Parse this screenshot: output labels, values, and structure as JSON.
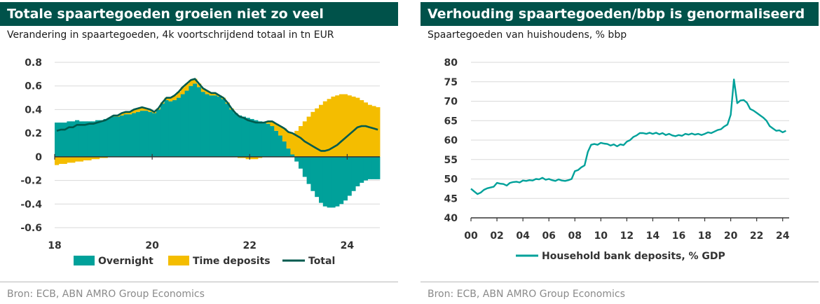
{
  "colors": {
    "title_bg": "#00524a",
    "overnight": "#00a19a",
    "time_deposits": "#f4bd00",
    "total": "#005a4e",
    "household": "#00a19a",
    "grid": "#d9d9d9",
    "axis": "#333333"
  },
  "left": {
    "title": "Totale spaartegoeden groeien niet zo veel",
    "subtitle": "Verandering in spaartegoeden, 4k voortschrijdend totaal in tn EUR",
    "source": "Bron: ECB, ABN AMRO Group Economics"
  },
  "right": {
    "title": "Verhouding spaartegoeden/bbp is genormaliseerd",
    "subtitle": "Spaartegoeden van huishoudens, % bbp",
    "source": "Bron:  ECB, ABN AMRO Group Economics"
  },
  "chart_data": [
    {
      "type": "bar",
      "stacked": true,
      "x_tick_labels": [
        "18",
        "20",
        "22",
        "24"
      ],
      "x_ticks": [
        2018,
        2020,
        2022,
        2024
      ],
      "x_range": [
        2018,
        2024.67
      ],
      "y_tick_labels": [
        "0.8",
        "0.6",
        "0.4",
        "0.2",
        "0",
        "-0.2",
        "-0.4",
        "-0.6"
      ],
      "ylim": [
        -0.6,
        0.8
      ],
      "grid": true,
      "legend_position": "bottom",
      "x": [
        2018.0,
        2018.08,
        2018.17,
        2018.25,
        2018.33,
        2018.42,
        2018.5,
        2018.58,
        2018.67,
        2018.75,
        2018.83,
        2018.92,
        2019.0,
        2019.08,
        2019.17,
        2019.25,
        2019.33,
        2019.42,
        2019.5,
        2019.58,
        2019.67,
        2019.75,
        2019.83,
        2019.92,
        2020.0,
        2020.08,
        2020.17,
        2020.25,
        2020.33,
        2020.42,
        2020.5,
        2020.58,
        2020.67,
        2020.75,
        2020.83,
        2020.92,
        2021.0,
        2021.08,
        2021.17,
        2021.25,
        2021.33,
        2021.42,
        2021.5,
        2021.58,
        2021.67,
        2021.75,
        2021.83,
        2021.92,
        2022.0,
        2022.08,
        2022.17,
        2022.25,
        2022.33,
        2022.42,
        2022.5,
        2022.58,
        2022.67,
        2022.75,
        2022.83,
        2022.92,
        2023.0,
        2023.08,
        2023.17,
        2023.25,
        2023.33,
        2023.42,
        2023.5,
        2023.58,
        2023.67,
        2023.75,
        2023.83,
        2023.92,
        2024.0,
        2024.08,
        2024.17,
        2024.25,
        2024.33,
        2024.42,
        2024.5,
        2024.58
      ],
      "series": [
        {
          "name": "Overnight",
          "values": [
            0.29,
            0.29,
            0.29,
            0.3,
            0.3,
            0.31,
            0.3,
            0.3,
            0.3,
            0.3,
            0.31,
            0.31,
            0.32,
            0.33,
            0.34,
            0.34,
            0.35,
            0.36,
            0.36,
            0.37,
            0.38,
            0.39,
            0.39,
            0.38,
            0.37,
            0.4,
            0.45,
            0.48,
            0.47,
            0.48,
            0.5,
            0.53,
            0.56,
            0.6,
            0.62,
            0.59,
            0.55,
            0.53,
            0.52,
            0.52,
            0.51,
            0.49,
            0.45,
            0.4,
            0.37,
            0.35,
            0.34,
            0.33,
            0.32,
            0.31,
            0.3,
            0.29,
            0.28,
            0.26,
            0.22,
            0.18,
            0.13,
            0.07,
            0.02,
            -0.04,
            -0.1,
            -0.17,
            -0.23,
            -0.29,
            -0.34,
            -0.39,
            -0.42,
            -0.43,
            -0.43,
            -0.42,
            -0.4,
            -0.37,
            -0.33,
            -0.29,
            -0.25,
            -0.22,
            -0.2,
            -0.19,
            -0.19,
            -0.19
          ]
        },
        {
          "name": "Time deposits",
          "values": [
            -0.07,
            -0.06,
            -0.06,
            -0.05,
            -0.05,
            -0.04,
            -0.04,
            -0.03,
            -0.03,
            -0.02,
            -0.02,
            -0.01,
            -0.01,
            0.0,
            0.01,
            0.01,
            0.02,
            0.02,
            0.02,
            0.03,
            0.03,
            0.03,
            0.02,
            0.02,
            0.01,
            0.01,
            0.01,
            0.02,
            0.03,
            0.04,
            0.05,
            0.06,
            0.06,
            0.05,
            0.04,
            0.03,
            0.03,
            0.03,
            0.02,
            0.02,
            0.01,
            0.01,
            0.01,
            0.01,
            0.0,
            -0.01,
            -0.01,
            -0.02,
            -0.02,
            -0.02,
            -0.01,
            0.0,
            0.02,
            0.04,
            0.06,
            0.08,
            0.11,
            0.14,
            0.18,
            0.22,
            0.26,
            0.3,
            0.34,
            0.38,
            0.41,
            0.44,
            0.47,
            0.49,
            0.51,
            0.52,
            0.53,
            0.53,
            0.52,
            0.51,
            0.5,
            0.48,
            0.46,
            0.44,
            0.43,
            0.42
          ]
        },
        {
          "name": "Total",
          "type": "line",
          "values": [
            0.22,
            0.23,
            0.23,
            0.25,
            0.25,
            0.27,
            0.27,
            0.27,
            0.28,
            0.28,
            0.29,
            0.3,
            0.31,
            0.33,
            0.35,
            0.35,
            0.37,
            0.38,
            0.38,
            0.4,
            0.41,
            0.42,
            0.41,
            0.4,
            0.38,
            0.41,
            0.46,
            0.5,
            0.5,
            0.52,
            0.55,
            0.59,
            0.62,
            0.65,
            0.66,
            0.62,
            0.58,
            0.56,
            0.54,
            0.54,
            0.52,
            0.5,
            0.46,
            0.41,
            0.37,
            0.34,
            0.33,
            0.31,
            0.3,
            0.29,
            0.29,
            0.29,
            0.3,
            0.3,
            0.28,
            0.26,
            0.24,
            0.21,
            0.2,
            0.18,
            0.16,
            0.13,
            0.11,
            0.09,
            0.07,
            0.05,
            0.05,
            0.06,
            0.08,
            0.1,
            0.13,
            0.16,
            0.19,
            0.22,
            0.25,
            0.26,
            0.26,
            0.25,
            0.24,
            0.23
          ]
        }
      ]
    },
    {
      "type": "line",
      "x_tick_labels": [
        "00",
        "02",
        "04",
        "06",
        "08",
        "10",
        "12",
        "14",
        "16",
        "18",
        "20",
        "22",
        "24"
      ],
      "x_ticks": [
        2000,
        2002,
        2004,
        2006,
        2008,
        2010,
        2012,
        2014,
        2016,
        2018,
        2020,
        2022,
        2024
      ],
      "x_range": [
        2000,
        2024.5
      ],
      "y_tick_labels": [
        "80",
        "75",
        "70",
        "65",
        "60",
        "55",
        "50",
        "45",
        "40"
      ],
      "ylim": [
        40,
        80
      ],
      "grid": true,
      "legend_position": "bottom",
      "series": [
        {
          "name": "Household bank deposits, % GDP",
          "x": [
            2000.0,
            2000.25,
            2000.5,
            2000.75,
            2001.0,
            2001.25,
            2001.5,
            2001.75,
            2002.0,
            2002.25,
            2002.5,
            2002.75,
            2003.0,
            2003.25,
            2003.5,
            2003.75,
            2004.0,
            2004.25,
            2004.5,
            2004.75,
            2005.0,
            2005.25,
            2005.5,
            2005.75,
            2006.0,
            2006.25,
            2006.5,
            2006.75,
            2007.0,
            2007.25,
            2007.5,
            2007.75,
            2008.0,
            2008.25,
            2008.5,
            2008.75,
            2009.0,
            2009.25,
            2009.5,
            2009.75,
            2010.0,
            2010.25,
            2010.5,
            2010.75,
            2011.0,
            2011.25,
            2011.5,
            2011.75,
            2012.0,
            2012.25,
            2012.5,
            2012.75,
            2013.0,
            2013.25,
            2013.5,
            2013.75,
            2014.0,
            2014.25,
            2014.5,
            2014.75,
            2015.0,
            2015.25,
            2015.5,
            2015.75,
            2016.0,
            2016.25,
            2016.5,
            2016.75,
            2017.0,
            2017.25,
            2017.5,
            2017.75,
            2018.0,
            2018.25,
            2018.5,
            2018.75,
            2019.0,
            2019.25,
            2019.5,
            2019.75,
            2020.0,
            2020.25,
            2020.5,
            2020.75,
            2021.0,
            2021.25,
            2021.5,
            2021.75,
            2022.0,
            2022.25,
            2022.5,
            2022.75,
            2023.0,
            2023.25,
            2023.5,
            2023.75,
            2024.0,
            2024.25
          ],
          "values": [
            47.5,
            46.8,
            46.1,
            46.5,
            47.2,
            47.6,
            47.8,
            48.0,
            49.0,
            48.8,
            48.7,
            48.3,
            49.0,
            49.2,
            49.3,
            49.1,
            49.6,
            49.5,
            49.7,
            49.6,
            50.0,
            49.9,
            50.3,
            49.8,
            50.0,
            49.7,
            49.5,
            49.9,
            49.6,
            49.5,
            49.7,
            50.0,
            52.0,
            52.3,
            53.0,
            53.5,
            57.0,
            58.8,
            59.0,
            58.8,
            59.3,
            59.1,
            59.0,
            58.6,
            58.9,
            58.4,
            58.9,
            58.7,
            59.6,
            60.0,
            60.8,
            61.2,
            61.8,
            61.8,
            61.6,
            61.9,
            61.6,
            61.9,
            61.5,
            61.8,
            61.3,
            61.6,
            61.2,
            61.0,
            61.3,
            61.1,
            61.6,
            61.4,
            61.7,
            61.4,
            61.6,
            61.3,
            61.6,
            62.0,
            61.8,
            62.2,
            62.6,
            62.8,
            63.5,
            64.0,
            66.5,
            75.6,
            69.5,
            70.2,
            70.3,
            69.6,
            68.0,
            67.6,
            67.0,
            66.4,
            65.8,
            65.0,
            63.6,
            63.0,
            62.4,
            62.5,
            62.0,
            62.4
          ]
        }
      ]
    }
  ],
  "legend": {
    "left": [
      "Overnight",
      "Time deposits",
      "Total"
    ],
    "right": [
      "Household bank deposits, % GDP"
    ]
  }
}
